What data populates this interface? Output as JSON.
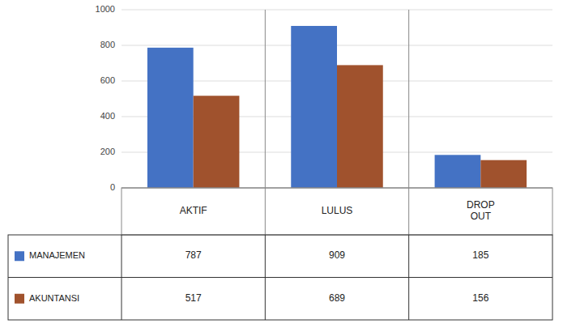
{
  "chart_data": {
    "type": "bar",
    "categories": [
      "AKTIF",
      "LULUS",
      "DROP\nOUT"
    ],
    "series": [
      {
        "name": "MANAJEMEN",
        "color": "#4472C4",
        "values": [
          787,
          909,
          185
        ]
      },
      {
        "name": "AKUNTANSI",
        "color": "#A0522D",
        "values": [
          517,
          689,
          156
        ]
      }
    ],
    "ylim": [
      0,
      1000
    ],
    "yticks": [
      0,
      200,
      400,
      600,
      800,
      1000
    ],
    "grid": true
  }
}
